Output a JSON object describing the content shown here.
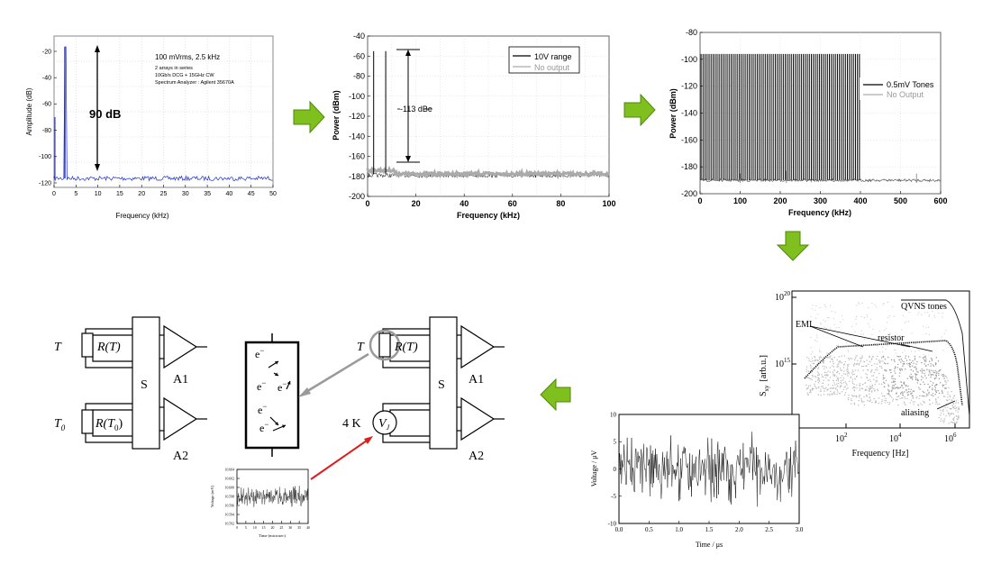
{
  "panel1": {
    "ylabel": "Amplitude (dB)",
    "xlabel": "Frequency (kHz)",
    "yticks": [
      "-20",
      "-40",
      "-60",
      "-80",
      "-100",
      "-120"
    ],
    "xticks": [
      "0",
      "5",
      "10",
      "15",
      "20",
      "25",
      "30",
      "35",
      "40",
      "45",
      "50"
    ],
    "annot_title": "100 mVrms, 2.5 kHz",
    "annot_1": "2 arrays in series",
    "annot_2": "10Gb/s DCG + 15GHz CW",
    "annot_3": "Spectrum Analyzer : Agilent 35670A",
    "dyn_range": "90 dB",
    "line_color": "#1f2fc8"
  },
  "panel2": {
    "ylabel": "Power (dBm)",
    "xlabel": "Frequency (kHz)",
    "yticks": [
      "-40",
      "-60",
      "-80",
      "-100",
      "-120",
      "-140",
      "-160",
      "-180",
      "-200"
    ],
    "xticks": [
      "0",
      "20",
      "40",
      "60",
      "80",
      "100"
    ],
    "legend": [
      "10V range",
      "No output"
    ],
    "annotation": "-113 dBc"
  },
  "panel3": {
    "ylabel": "Power (dBm)",
    "xlabel": "Frequency (kHz)",
    "yticks": [
      "-80",
      "-100",
      "-120",
      "-140",
      "-160",
      "-180",
      "-200"
    ],
    "xticks": [
      "0",
      "100",
      "200",
      "300",
      "400",
      "500",
      "600"
    ],
    "legend": [
      "0.5mV Tones",
      "No Output"
    ]
  },
  "panel4": {
    "ylabel": "S",
    "ylabel_sub": "xy",
    "yunit": "[arb.u.]",
    "xlabel": "Frequency [Hz]",
    "ytick_top_base": "10",
    "ytick_top_exp": "20",
    "ytick_mid_base": "10",
    "ytick_mid_exp": "15",
    "xtick_1_exp": "2",
    "xtick_2_exp": "4",
    "xtick_3_exp": "6",
    "label_qvns": "QVNS tones",
    "label_emi": "EMI",
    "label_resistor": "resistor",
    "label_aliasing": "aliasing"
  },
  "panel5": {
    "ylabel": "Voltage / μV",
    "xlabel": "Time / μs",
    "yticks": [
      "10",
      "5",
      "0",
      "-5",
      "-10"
    ],
    "xticks": [
      "0.0",
      "0.5",
      "1.0",
      "1.5",
      "2.0",
      "2.5",
      "3.0"
    ]
  },
  "panel6": {
    "ylabel": "Voltage (mV)",
    "xlabel": "Time (microsec)",
    "yticks": [
      "10.604",
      "10.602",
      "10.600",
      "10.598",
      "10.596",
      "10.594",
      "10.592"
    ],
    "xticks": [
      "0",
      "5",
      "10",
      "15",
      "20",
      "25",
      "30",
      "35",
      "40"
    ]
  },
  "circuit_left": {
    "temp_top": "T",
    "res_top": "R(T)",
    "temp_bottom": "T",
    "temp_bottom_sub": "0",
    "res_bottom": "R(T",
    "res_bottom_sub": "0",
    "res_bottom_close": ")",
    "switch": "S",
    "amp_top": "A1",
    "amp_bottom": "A2"
  },
  "circuit_right": {
    "temp_top": "T",
    "res_top": "R(T)",
    "temp_bottom": "4 K",
    "source_v": "V",
    "source_sub": "J",
    "switch": "S",
    "amp_top": "A1",
    "amp_bottom": "A2"
  },
  "electron_box": {
    "electron": "e",
    "charge": "−"
  },
  "colors": {
    "arrow_green": "#7fbf1e",
    "arrow_green_dark": "#4d8a0a",
    "pointer_red": "#e01b1b",
    "pointer_gray": "#9a9a9a"
  }
}
